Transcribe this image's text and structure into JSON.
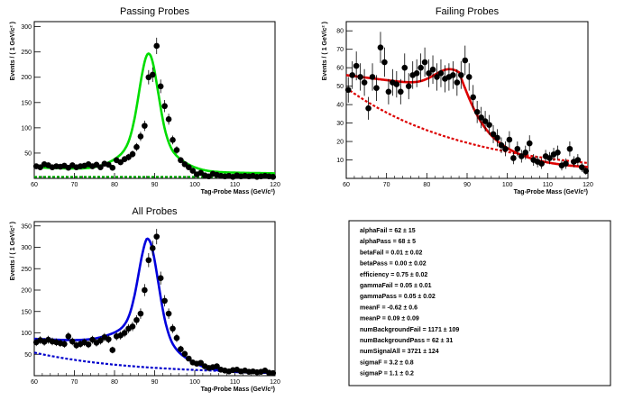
{
  "chart_data": [
    {
      "type": "scatter",
      "title": "Passing Probes",
      "xlabel": "Tag-Probe Mass (GeV/c²)",
      "ylabel": "Events / ( 1 GeV/c² )",
      "xlim": [
        60,
        120
      ],
      "ylim": [
        0,
        310
      ],
      "xticks": [
        60,
        70,
        80,
        90,
        100,
        110,
        120
      ],
      "yticks": [
        50,
        100,
        150,
        200,
        250,
        300
      ],
      "colors": {
        "fit": "#00dd00",
        "background": "#00aa00",
        "points": "#000000"
      },
      "series": [
        {
          "kind": "data",
          "x": [
            60,
            61,
            62,
            63,
            64,
            65,
            66,
            67,
            68,
            69,
            70,
            71,
            72,
            73,
            74,
            75,
            76,
            77,
            78,
            79,
            80,
            81,
            82,
            83,
            84,
            85,
            86,
            87,
            88,
            89,
            90,
            91,
            92,
            93,
            94,
            95,
            96,
            97,
            98,
            99,
            100,
            101,
            102,
            103,
            104,
            105,
            106,
            107,
            108,
            109,
            110,
            111,
            112,
            113,
            114,
            115,
            116,
            117,
            118,
            119
          ],
          "y": [
            24,
            22,
            28,
            26,
            22,
            24,
            23,
            25,
            21,
            26,
            22,
            24,
            25,
            28,
            24,
            27,
            22,
            29,
            27,
            21,
            36,
            32,
            38,
            42,
            48,
            62,
            83,
            104,
            200,
            205,
            262,
            182,
            143,
            117,
            76,
            56,
            36,
            28,
            22,
            15,
            8,
            11,
            6,
            4,
            9,
            7,
            5,
            4,
            5,
            3,
            6,
            4,
            5,
            4,
            5,
            3,
            4,
            5,
            4,
            3
          ]
        },
        {
          "kind": "fit-total",
          "model": "gaussian-peak-plus-background",
          "mean": 88.5,
          "sigma": 2.3,
          "peak": 232,
          "background_level": 22
        },
        {
          "kind": "fit-background",
          "level": 3
        }
      ]
    },
    {
      "type": "scatter",
      "title": "Failing Probes",
      "xlabel": "Tag-Probe Mass (GeV/c²)",
      "ylabel": "Events / ( 1 GeV/c² )",
      "xlim": [
        60,
        120
      ],
      "ylim": [
        0,
        85
      ],
      "xticks": [
        60,
        70,
        80,
        90,
        100,
        110,
        120
      ],
      "yticks": [
        10,
        20,
        30,
        40,
        50,
        60,
        70,
        80
      ],
      "colors": {
        "fit": "#dd0000",
        "background": "#dd0000",
        "points": "#000000"
      },
      "series": [
        {
          "kind": "data",
          "x": [
            60,
            61,
            62,
            63,
            64,
            65,
            66,
            67,
            68,
            69,
            70,
            71,
            72,
            73,
            74,
            75,
            76,
            77,
            78,
            79,
            80,
            81,
            82,
            83,
            84,
            85,
            86,
            87,
            88,
            89,
            90,
            91,
            92,
            93,
            94,
            95,
            96,
            97,
            98,
            99,
            100,
            101,
            102,
            103,
            104,
            105,
            106,
            107,
            108,
            109,
            110,
            111,
            112,
            113,
            114,
            115,
            116,
            117,
            118,
            119
          ],
          "y": [
            48,
            56,
            61,
            55,
            52,
            38,
            55,
            49,
            71,
            63,
            47,
            52,
            51,
            47,
            60,
            50,
            56,
            57,
            60,
            63,
            57,
            59,
            55,
            57,
            54,
            55,
            56,
            52,
            56,
            64,
            55,
            44,
            36,
            33,
            31,
            29,
            24,
            22,
            18,
            16,
            21,
            11,
            16,
            12,
            14,
            19,
            10,
            9,
            8,
            12,
            11,
            13,
            14,
            7,
            8,
            16,
            9,
            10,
            6,
            4
          ]
        },
        {
          "kind": "fit-total",
          "model": "gaussian-plus-falling-background"
        },
        {
          "kind": "fit-background",
          "model": "falling-exponential"
        }
      ]
    },
    {
      "type": "scatter",
      "title": "All Probes",
      "xlabel": "Tag-Probe Mass (GeV/c²)",
      "ylabel": "Events / ( 1 GeV/c² )",
      "xlim": [
        60,
        120
      ],
      "ylim": [
        0,
        360
      ],
      "xticks": [
        60,
        70,
        80,
        90,
        100,
        110,
        120
      ],
      "yticks": [
        50,
        100,
        150,
        200,
        250,
        300,
        350
      ],
      "colors": {
        "fit": "#0000dd",
        "background": "#0000cc",
        "points": "#000000"
      },
      "series": [
        {
          "kind": "data",
          "x": [
            60,
            61,
            62,
            63,
            64,
            65,
            66,
            67,
            68,
            69,
            70,
            71,
            72,
            73,
            74,
            75,
            76,
            77,
            78,
            79,
            80,
            81,
            82,
            83,
            84,
            85,
            86,
            87,
            88,
            89,
            90,
            91,
            92,
            93,
            94,
            95,
            96,
            97,
            98,
            99,
            100,
            101,
            102,
            103,
            104,
            105,
            106,
            107,
            108,
            109,
            110,
            111,
            112,
            113,
            114,
            115,
            116,
            117,
            118,
            119
          ],
          "y": [
            78,
            83,
            79,
            84,
            80,
            78,
            76,
            74,
            92,
            80,
            71,
            74,
            78,
            73,
            84,
            77,
            82,
            90,
            85,
            60,
            92,
            94,
            100,
            110,
            115,
            130,
            145,
            200,
            270,
            298,
            325,
            228,
            175,
            145,
            110,
            88,
            62,
            51,
            40,
            31,
            28,
            30,
            22,
            18,
            20,
            22,
            14,
            12,
            10,
            13,
            14,
            10,
            12,
            9,
            10,
            8,
            9,
            12,
            7,
            6
          ]
        },
        {
          "kind": "fit-total",
          "model": "gaussian-peak-plus-falling-background",
          "mean": 88.5,
          "sigma": 2.4,
          "peak": 248
        },
        {
          "kind": "fit-background",
          "model": "falling-exponential"
        }
      ]
    }
  ],
  "stats_box": {
    "lines": [
      "alphaFail  =  62 ± 15",
      "alphaPass  =  68 ± 5",
      "betaFail  =  0.01 ± 0.02",
      "betaPass  =  0.00 ± 0.02",
      "efficiency  =  0.75 ± 0.02",
      "gammaFail  =  0.05 ± 0.01",
      "gammaPass  =  0.05 ± 0.02",
      "meanF  =  -0.62 ± 0.6",
      "meanP  =  0.09 ± 0.09",
      "numBackgroundFail  =  1171 ± 109",
      "numBackgroundPass  =  62 ± 31",
      "numSignalAll  =  3721 ± 124",
      "sigmaF  =  3.2 ± 0.8",
      "sigmaP  =  1.1 ± 0.2"
    ]
  }
}
